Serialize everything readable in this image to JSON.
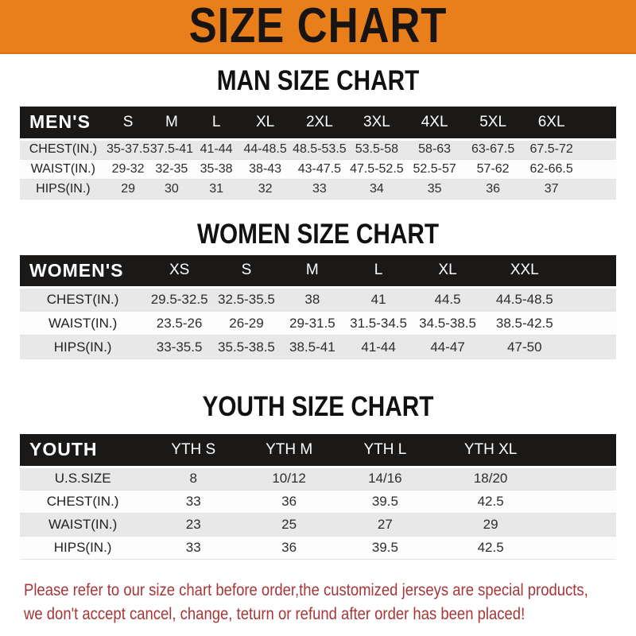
{
  "banner": {
    "title": "SIZE CHART"
  },
  "colors": {
    "banner_orange": "#E87F1A",
    "header_bar_black": "#1B1918",
    "row_stripe_gray": "#E8E8E8",
    "note_red": "#A63638"
  },
  "sections": [
    {
      "id": "men",
      "heading": "MAN SIZE CHART",
      "table": {
        "label": "MEN'S",
        "columns": [
          "S",
          "M",
          "L",
          "XL",
          "2XL",
          "3XL",
          "4XL",
          "5XL",
          "6XL"
        ],
        "rows": [
          {
            "label": "CHEST(IN.)",
            "values": [
              "35-37.5",
              "37.5-41",
              "41-44",
              "44-48.5",
              "48.5-53.5",
              "53.5-58",
              "58-63",
              "63-67.5",
              "67.5-72"
            ]
          },
          {
            "label": "WAIST(IN.)",
            "values": [
              "29-32",
              "32-35",
              "35-38",
              "38-43",
              "43-47.5",
              "47.5-52.5",
              "52.5-57",
              "57-62",
              "62-66.5"
            ]
          },
          {
            "label": "HIPS(IN.)",
            "values": [
              "29",
              "30",
              "31",
              "32",
              "33",
              "34",
              "35",
              "36",
              "37"
            ]
          }
        ]
      }
    },
    {
      "id": "women",
      "heading": "WOMEN SIZE CHART",
      "table": {
        "label": "WOMEN'S",
        "columns": [
          "XS",
          "S",
          "M",
          "L",
          "XL",
          "XXL"
        ],
        "rows": [
          {
            "label": "CHEST(IN.)",
            "values": [
              "29.5-32.5",
              "32.5-35.5",
              "38",
              "41",
              "44.5",
              "44.5-48.5"
            ]
          },
          {
            "label": "WAIST(IN.)",
            "values": [
              "23.5-26",
              "26-29",
              "29-31.5",
              "31.5-34.5",
              "34.5-38.5",
              "38.5-42.5"
            ]
          },
          {
            "label": "HIPS(IN.)",
            "values": [
              "33-35.5",
              "35.5-38.5",
              "38.5-41",
              "41-44",
              "44-47",
              "47-50"
            ]
          }
        ]
      }
    },
    {
      "id": "youth",
      "heading": "YOUTH SIZE CHART",
      "table": {
        "label": "YOUTH",
        "columns": [
          "YTH S",
          "YTH M",
          "YTH L",
          "YTH XL"
        ],
        "rows": [
          {
            "label": "U.S.SIZE",
            "values": [
              "8",
              "10/12",
              "14/16",
              "18/20"
            ]
          },
          {
            "label": "CHEST(IN.)",
            "values": [
              "33",
              "36",
              "39.5",
              "42.5"
            ]
          },
          {
            "label": "WAIST(IN.)",
            "values": [
              "23",
              "25",
              "27",
              "29"
            ]
          },
          {
            "label": "HIPS(IN.)",
            "values": [
              "33",
              "36",
              "39.5",
              "42.5"
            ]
          }
        ]
      }
    }
  ],
  "note": {
    "line1": "Please refer to our size chart before order,the customized jerseys are special products,",
    "line2": "we don't accept cancel, change, teturn or refund after order has been placed!"
  }
}
